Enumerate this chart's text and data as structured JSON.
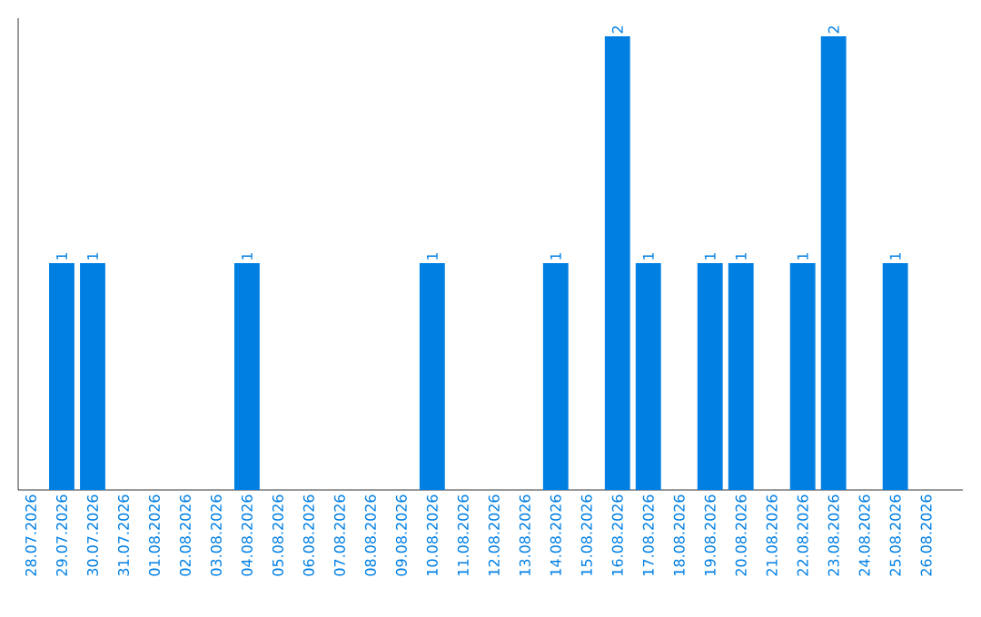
{
  "chart_data": {
    "type": "bar",
    "categories": [
      "28.07.2026",
      "29.07.2026",
      "30.07.2026",
      "31.07.2026",
      "01.08.2026",
      "02.08.2026",
      "03.08.2026",
      "04.08.2026",
      "05.08.2026",
      "06.08.2026",
      "07.08.2026",
      "08.08.2026",
      "09.08.2026",
      "10.08.2026",
      "11.08.2026",
      "12.08.2026",
      "13.08.2026",
      "14.08.2026",
      "15.08.2026",
      "16.08.2026",
      "17.08.2026",
      "18.08.2026",
      "19.08.2026",
      "20.08.2026",
      "21.08.2026",
      "22.08.2026",
      "23.08.2026",
      "24.08.2026",
      "25.08.2026",
      "26.08.2026"
    ],
    "values": [
      0,
      1,
      1,
      0,
      0,
      0,
      0,
      1,
      0,
      0,
      0,
      0,
      0,
      1,
      0,
      0,
      0,
      1,
      0,
      2,
      1,
      0,
      1,
      1,
      0,
      1,
      2,
      0,
      1,
      0
    ],
    "value_labels": [
      null,
      "1",
      "1",
      null,
      null,
      null,
      null,
      "1",
      null,
      null,
      null,
      null,
      null,
      "1",
      null,
      null,
      null,
      "1",
      null,
      "2",
      "1",
      null,
      "1",
      "1",
      null,
      "1",
      "2",
      null,
      "1",
      null
    ],
    "color": "#007fe3",
    "ylim": [
      0,
      2.08
    ],
    "tick_labels": "x"
  }
}
